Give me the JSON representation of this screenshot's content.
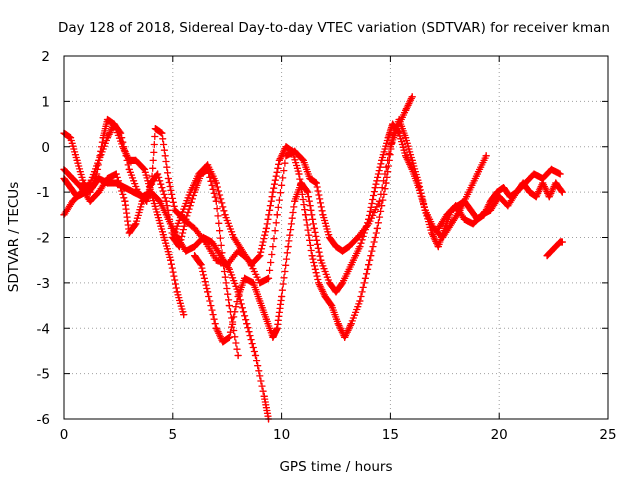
{
  "chart_data": {
    "type": "scatter",
    "title": "Day 128 of 2018, Sidereal Day-to-day VTEC variation (SDTVAR) for receiver kman",
    "xlabel": "GPS time / hours",
    "ylabel": "SDTVAR / TECUs",
    "xlim": [
      0,
      25
    ],
    "ylim": [
      -6,
      2
    ],
    "xticks": [
      "0",
      "5",
      "10",
      "15",
      "20",
      "25"
    ],
    "yticks": [
      "2",
      "1",
      "0",
      "-1",
      "-2",
      "-3",
      "-4",
      "-5",
      "-6"
    ],
    "grid": true,
    "marker": "+",
    "color": "#ff0000",
    "series": [
      {
        "x": [
          0.0,
          0.3,
          0.6,
          0.9,
          1.2,
          1.5,
          1.8,
          2.0,
          2.3,
          2.7,
          3.0,
          3.3,
          3.7,
          4.0,
          4.3,
          4.6,
          4.9,
          5.2,
          5.5
        ],
        "y": [
          0.3,
          0.2,
          -0.3,
          -0.8,
          -1.0,
          -0.6,
          0.2,
          0.6,
          0.5,
          0.0,
          -0.3,
          -0.3,
          -0.5,
          -1.0,
          -1.5,
          -2.0,
          -2.5,
          -3.2,
          -3.7
        ]
      },
      {
        "x": [
          0.0,
          0.4,
          0.8,
          1.2,
          1.6,
          2.0,
          2.3,
          2.6,
          3.0,
          3.4,
          3.8,
          4.0,
          4.3,
          4.7,
          5.0,
          5.3,
          5.6,
          6.0,
          6.3,
          6.6,
          7.0,
          7.3,
          7.6,
          8.0
        ],
        "y": [
          -1.5,
          -1.2,
          -1.0,
          -0.8,
          -0.3,
          0.2,
          0.5,
          0.3,
          -0.5,
          -1.0,
          -1.2,
          -0.8,
          -0.6,
          -1.2,
          -2.0,
          -2.2,
          -1.6,
          -1.0,
          -0.6,
          -0.5,
          -1.2,
          -2.5,
          -3.5,
          -4.6
        ]
      },
      {
        "x": [
          0.0,
          0.4,
          0.8,
          1.2,
          1.6,
          2.0,
          2.4,
          2.8,
          3.0,
          3.3,
          3.6,
          4.0,
          4.4,
          4.8,
          5.2,
          5.6,
          6.0,
          6.4,
          6.8,
          7.2,
          7.6,
          8.0,
          8.4,
          8.8,
          9.2,
          9.4
        ],
        "y": [
          -0.5,
          -0.7,
          -0.9,
          -1.2,
          -1.0,
          -0.7,
          -0.6,
          -1.2,
          -1.9,
          -1.7,
          -1.2,
          -1.0,
          -1.2,
          -1.6,
          -2.0,
          -2.3,
          -2.2,
          -2.0,
          -2.1,
          -2.4,
          -2.7,
          -3.2,
          -3.9,
          -4.6,
          -5.5,
          -6.0
        ]
      },
      {
        "x": [
          0.0,
          0.3,
          0.6,
          1.0,
          1.3,
          1.6,
          2.0,
          2.4,
          2.8,
          3.2,
          3.6,
          4.0,
          4.2,
          4.5,
          4.8,
          5.1,
          5.5,
          6.0,
          6.5,
          7.0,
          7.5,
          8.0,
          8.5,
          9.0,
          9.4,
          9.8,
          10.2,
          10.6,
          11.0,
          11.3,
          11.6,
          11.9,
          12.2,
          12.5,
          12.8,
          13.1,
          13.5,
          14.0,
          14.5,
          15.0,
          15.3,
          15.7,
          16.0
        ],
        "y": [
          -0.7,
          -0.9,
          -1.1,
          -1.0,
          -0.9,
          -0.7,
          -0.8,
          -0.8,
          -0.9,
          -1.0,
          -1.1,
          -1.0,
          0.4,
          0.3,
          -0.7,
          -1.4,
          -1.6,
          -1.8,
          -2.1,
          -2.5,
          -2.6,
          -2.3,
          -2.5,
          -3.0,
          -2.9,
          -1.5,
          -0.2,
          -0.1,
          -0.3,
          -0.7,
          -0.8,
          -1.5,
          -2.0,
          -2.2,
          -2.3,
          -2.2,
          -2.0,
          -1.7,
          -1.2,
          0.0,
          0.4,
          0.8,
          1.1
        ]
      },
      {
        "x": [
          6.0,
          6.3,
          6.6,
          7.0,
          7.3,
          7.6,
          8.0,
          8.3,
          8.7,
          9.0,
          9.3,
          9.6,
          9.8,
          10.0,
          10.3,
          10.6,
          10.9,
          11.2,
          11.5,
          11.8,
          12.2,
          12.5,
          12.8,
          13.2,
          13.6,
          14.0,
          14.3,
          14.6,
          14.9,
          15.1,
          15.4,
          15.7,
          16.0,
          16.3,
          16.6,
          16.9,
          17.2,
          17.5,
          17.8,
          18.1,
          18.4,
          18.7,
          19.0,
          19.3,
          19.6,
          19.9,
          20.2,
          20.5,
          20.8,
          21.1,
          21.4,
          21.7,
          22.0,
          22.3,
          22.6,
          22.9
        ],
        "y": [
          -2.4,
          -2.6,
          -3.2,
          -4.0,
          -4.3,
          -4.2,
          -3.3,
          -2.9,
          -3.0,
          -3.4,
          -3.8,
          -4.2,
          -4.0,
          -3.3,
          -2.2,
          -1.2,
          -0.8,
          -1.0,
          -1.8,
          -2.5,
          -3.0,
          -3.2,
          -3.0,
          -2.6,
          -2.2,
          -1.6,
          -0.9,
          -0.3,
          0.2,
          0.5,
          0.3,
          -0.2,
          -0.5,
          -0.9,
          -1.4,
          -1.9,
          -2.2,
          -1.8,
          -1.4,
          -1.3,
          -1.2,
          -1.4,
          -1.6,
          -1.5,
          -1.2,
          -1.0,
          -0.9,
          -1.1,
          -1.0,
          -0.8,
          -1.0,
          -1.1,
          -0.8,
          -1.1,
          -0.8,
          -1.0
        ]
      },
      {
        "x": [
          5.0,
          5.4,
          5.8,
          6.2,
          6.6,
          7.0,
          7.4,
          7.8,
          8.2,
          8.6,
          9.0,
          9.3,
          9.6,
          9.9,
          10.2,
          10.5,
          10.8,
          11.1,
          11.4,
          11.7,
          12.0,
          12.3,
          12.6,
          12.9,
          13.2,
          13.6,
          14.0,
          14.4,
          14.8,
          15.1,
          15.4,
          15.7,
          16.0,
          16.3,
          16.6,
          17.0,
          17.4,
          17.8,
          18.2,
          18.6,
          19.0,
          19.4
        ],
        "y": [
          -2.0,
          -1.5,
          -1.0,
          -0.6,
          -0.4,
          -0.8,
          -1.5,
          -2.0,
          -2.3,
          -2.6,
          -2.4,
          -1.8,
          -1.0,
          -0.3,
          0.0,
          -0.1,
          -0.6,
          -1.5,
          -2.4,
          -3.0,
          -3.3,
          -3.5,
          -3.9,
          -4.2,
          -3.9,
          -3.4,
          -2.6,
          -1.8,
          -0.8,
          0.2,
          0.6,
          0.2,
          -0.3,
          -0.8,
          -1.4,
          -1.8,
          -2.0,
          -1.7,
          -1.4,
          -1.0,
          -0.6,
          -0.2
        ]
      },
      {
        "x": [
          17.2,
          17.6,
          18.0,
          18.4,
          18.8,
          19.2,
          19.6,
          20.0,
          20.4,
          20.8,
          21.2,
          21.6,
          22.0,
          22.4,
          22.8
        ],
        "y": [
          -1.8,
          -1.5,
          -1.3,
          -1.6,
          -1.7,
          -1.5,
          -1.4,
          -1.1,
          -1.3,
          -1.0,
          -0.8,
          -0.6,
          -0.7,
          -0.5,
          -0.6
        ]
      },
      {
        "x": [
          22.2,
          22.4,
          22.6,
          22.8,
          22.9
        ],
        "y": [
          -2.4,
          -2.3,
          -2.2,
          -2.1,
          -2.1
        ]
      }
    ]
  }
}
